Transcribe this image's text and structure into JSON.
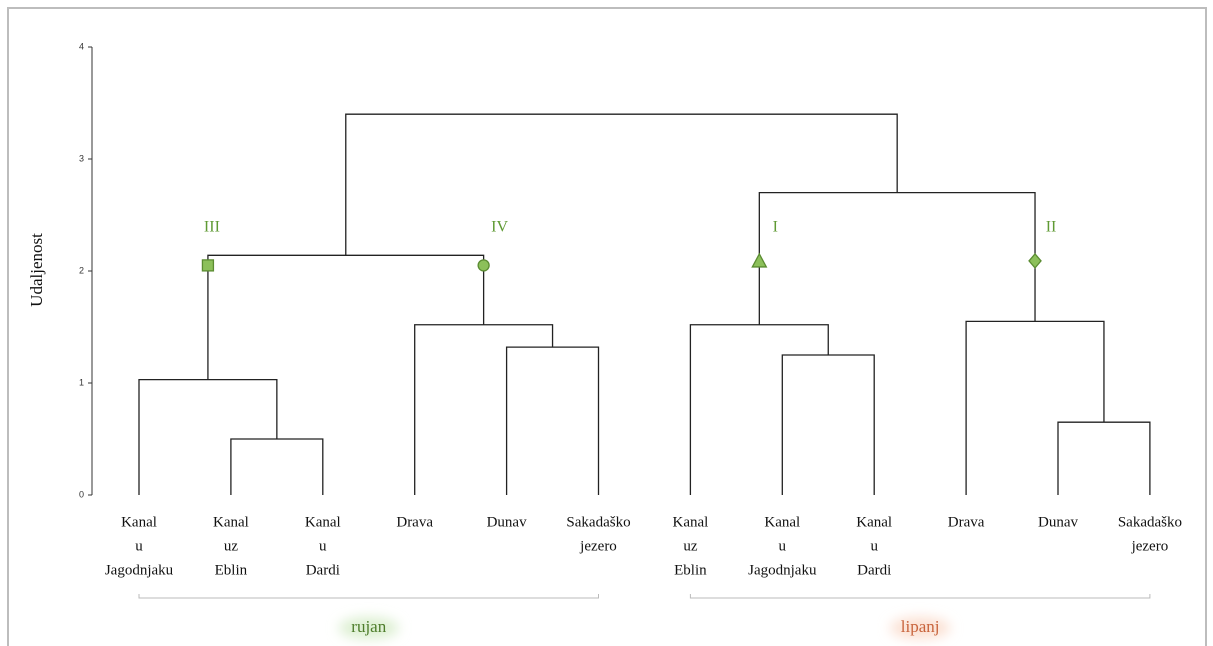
{
  "chart_data": {
    "type": "dendrogram",
    "ylabel": "Udaljenost",
    "ylim": [
      0,
      4
    ],
    "yticks": [
      0,
      1,
      2,
      3,
      4
    ],
    "color": "#222222",
    "leaves": [
      [
        "Kanal",
        "u",
        "Jagodnjaku"
      ],
      [
        "Kanal",
        "uz",
        "Eblin"
      ],
      [
        "Kanal",
        "u",
        "Dardi"
      ],
      [
        "Drava"
      ],
      [
        "Dunav"
      ],
      [
        "Sakadaško",
        "jezero"
      ],
      [
        "Kanal",
        "uz",
        "Eblin"
      ],
      [
        "Kanal",
        "u",
        "Jagodnjaku"
      ],
      [
        "Kanal",
        "u",
        "Dardi"
      ],
      [
        "Drava"
      ],
      [
        "Dunav"
      ],
      [
        "Sakadaško",
        "jezero"
      ]
    ],
    "merges": [
      {
        "children": [
          1,
          2
        ],
        "height": 0.5
      },
      {
        "children": [
          0,
          12
        ],
        "height": 1.03
      },
      {
        "children": [
          4,
          5
        ],
        "height": 1.32
      },
      {
        "children": [
          3,
          14
        ],
        "height": 1.52
      },
      {
        "children": [
          13,
          15
        ],
        "height": 2.14
      },
      {
        "children": [
          7,
          8
        ],
        "height": 1.25
      },
      {
        "children": [
          6,
          17
        ],
        "height": 1.52
      },
      {
        "children": [
          10,
          11
        ],
        "height": 0.65
      },
      {
        "children": [
          9,
          19
        ],
        "height": 1.55
      },
      {
        "children": [
          18,
          20
        ],
        "height": 2.7
      },
      {
        "children": [
          16,
          21
        ],
        "height": 3.4
      }
    ],
    "clusters": [
      {
        "label": "III",
        "node": 13,
        "marker": "square",
        "height": 2.05
      },
      {
        "label": "IV",
        "node": 15,
        "marker": "circle",
        "height": 2.05
      },
      {
        "label": "I",
        "node": 18,
        "marker": "triangle",
        "height": 2.09
      },
      {
        "label": "II",
        "node": 20,
        "marker": "diamond",
        "height": 2.09
      }
    ],
    "groups": [
      {
        "label": "rujan",
        "leaves": [
          0,
          5
        ],
        "color": "#4e7d2c",
        "glow": "#dcefd0"
      },
      {
        "label": "lipanj",
        "leaves": [
          6,
          11
        ],
        "color": "#c8643c",
        "glow": "#fbe0d2"
      }
    ]
  }
}
